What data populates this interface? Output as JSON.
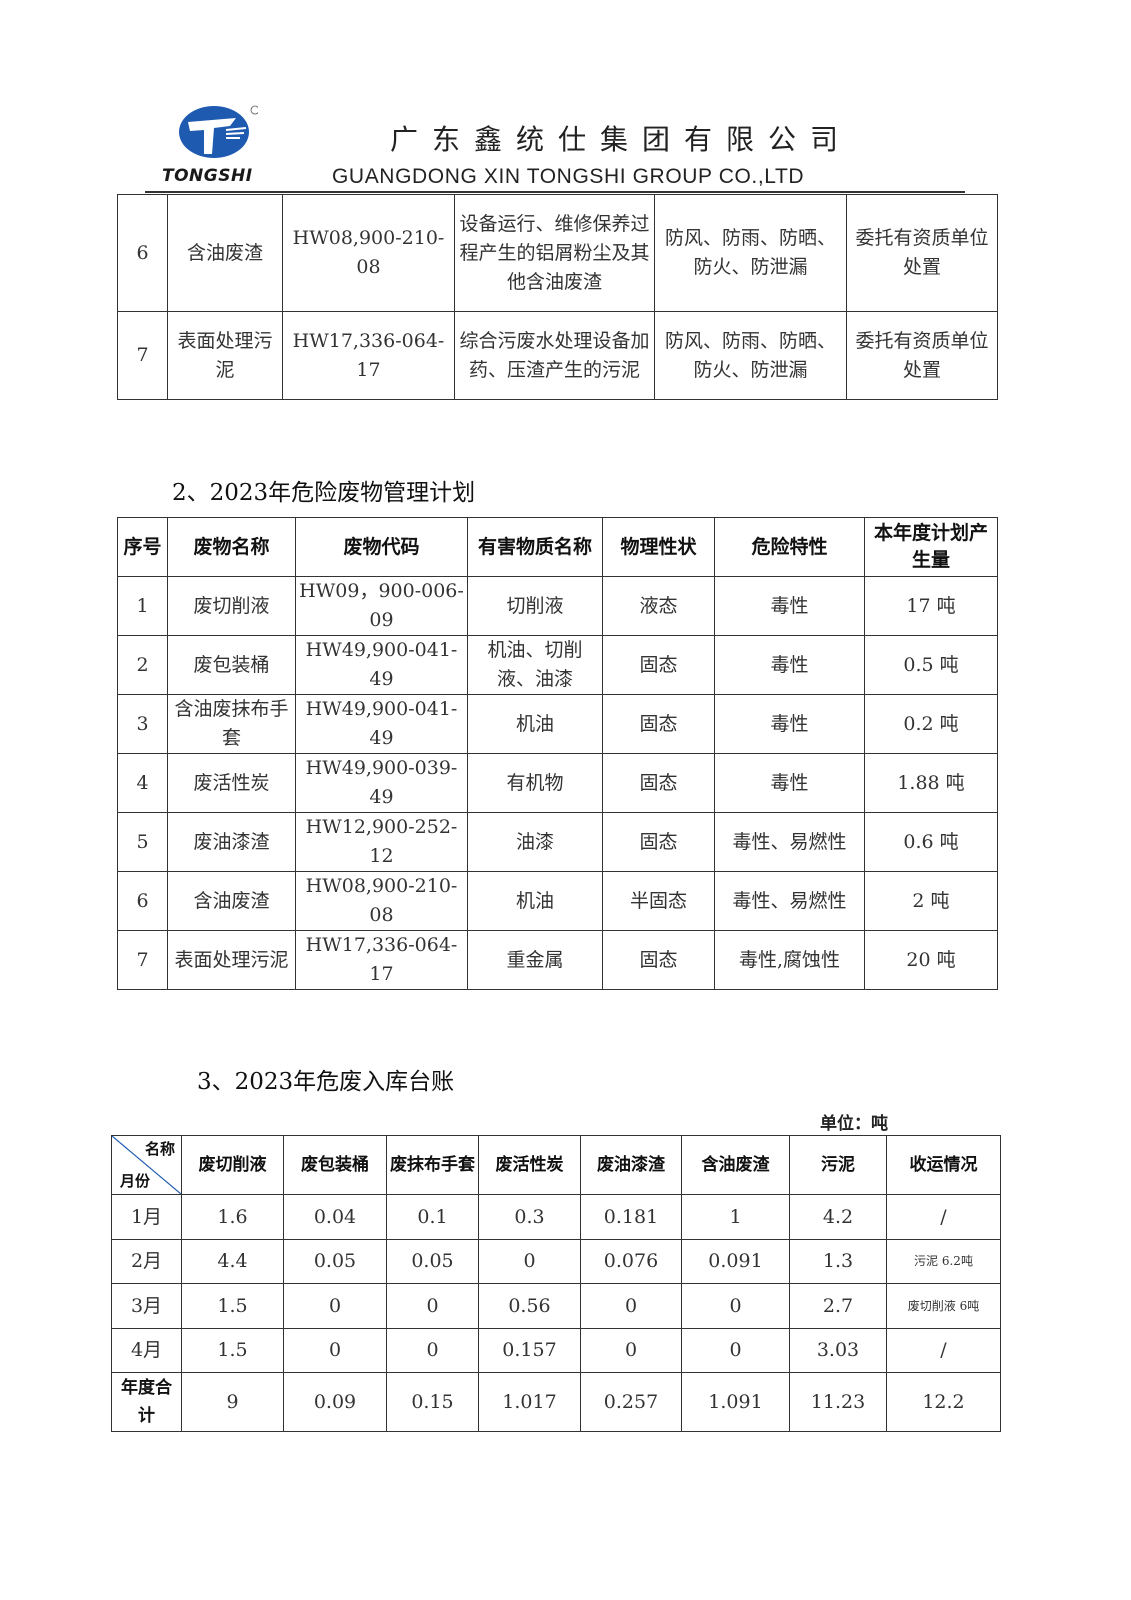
{
  "header": {
    "logo_text": "TONGSHI",
    "company_cn": "广东鑫统仕集团有限公司",
    "company_en": "GUANGDONG XIN TONGSHI GROUP CO.,LTD",
    "brand_color": "#1e5bb0"
  },
  "table1": {
    "rows": [
      [
        "6",
        "含油废渣",
        "HW08,900-210-08",
        "设备运行、维修保养过程产生的铝屑粉尘及其他含油废渣",
        "防风、防雨、防晒、防火、防泄漏",
        "委托有资质单位处置"
      ],
      [
        "7",
        "表面处理污泥",
        "HW17,336-064-17",
        "综合污废水处理设备加药、压渣产生的污泥",
        "防风、防雨、防晒、防火、防泄漏",
        "委托有资质单位处置"
      ]
    ]
  },
  "section2": {
    "title": "2、2023年危险废物管理计划",
    "headers": [
      "序号",
      "废物名称",
      "废物代码",
      "有害物质名称",
      "物理性状",
      "危险特性",
      "本年度计划产生量"
    ],
    "rows": [
      [
        "1",
        "废切削液",
        "HW09，900-006-09",
        "切削液",
        "液态",
        "毒性",
        "17 吨"
      ],
      [
        "2",
        "废包装桶",
        "HW49,900-041-49",
        "机油、切削液、油漆",
        "固态",
        "毒性",
        "0.5 吨"
      ],
      [
        "3",
        "含油废抹布手套",
        "HW49,900-041-49",
        "机油",
        "固态",
        "毒性",
        "0.2 吨"
      ],
      [
        "4",
        "废活性炭",
        "HW49,900-039-49",
        "有机物",
        "固态",
        "毒性",
        "1.88 吨"
      ],
      [
        "5",
        "废油漆渣",
        "HW12,900-252-12",
        "油漆",
        "固态",
        "毒性、易燃性",
        "0.6 吨"
      ],
      [
        "6",
        "含油废渣",
        "HW08,900-210-08",
        "机油",
        "半固态",
        "毒性、易燃性",
        "2 吨"
      ],
      [
        "7",
        "表面处理污泥",
        "HW17,336-064-17",
        "重金属",
        "固态",
        "毒性,腐蚀性",
        "20 吨"
      ]
    ]
  },
  "section3": {
    "title": "3、2023年危废入库台账",
    "unit": "单位：吨",
    "corner_top": "名称",
    "corner_bottom": "月份",
    "headers": [
      "废切削液",
      "废包装桶",
      "废抹布手套",
      "废活性炭",
      "废油漆渣",
      "含油废渣",
      "污泥",
      "收运情况"
    ],
    "rows": [
      [
        "1月",
        "1.6",
        "0.04",
        "0.1",
        "0.3",
        "0.181",
        "1",
        "4.2",
        "/"
      ],
      [
        "2月",
        "4.4",
        "0.05",
        "0.05",
        "0",
        "0.076",
        "0.091",
        "1.3",
        "污泥 6.2吨"
      ],
      [
        "3月",
        "1.5",
        "0",
        "0",
        "0.56",
        "0",
        "0",
        "2.7",
        "废切削液 6吨"
      ],
      [
        "4月",
        "1.5",
        "0",
        "0",
        "0.157",
        "0",
        "0",
        "3.03",
        "/"
      ]
    ],
    "total": [
      "年度合计",
      "9",
      "0.09",
      "0.15",
      "1.017",
      "0.257",
      "1.091",
      "11.23",
      "12.2"
    ]
  }
}
